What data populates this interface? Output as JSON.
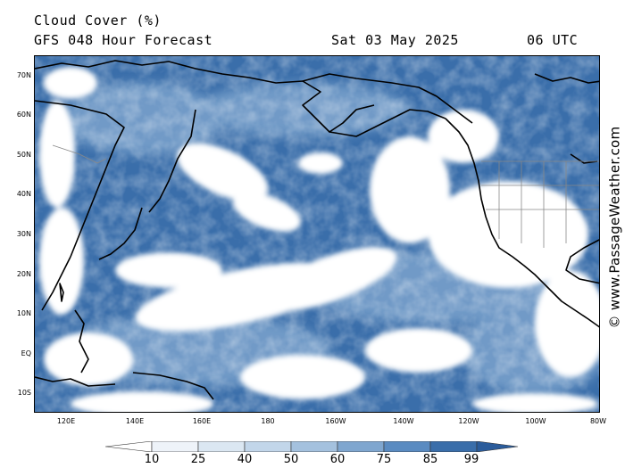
{
  "header": {
    "title": "Cloud Cover (%)",
    "subtitle": "GFS 048 Hour Forecast",
    "date": "Sat 03 May 2025",
    "time": "06 UTC"
  },
  "map": {
    "latitude_labels": [
      "70N",
      "60N",
      "50N",
      "40N",
      "30N",
      "20N",
      "10N",
      "EQ",
      "10S"
    ],
    "longitude_labels": [
      "120E",
      "140E",
      "160E",
      "180",
      "160W",
      "140W",
      "120W",
      "100W",
      "80W"
    ],
    "colors": {
      "dense_cloud": "#3a6eaa",
      "mid_cloud": "#8fb2d6",
      "thin_cloud": "#d9e6f2",
      "clear": "#ffffff",
      "coastline": "#000000"
    }
  },
  "watermark": "© www.PassageWeather.com",
  "legend": {
    "labels": [
      "10",
      "25",
      "40",
      "50",
      "60",
      "75",
      "85",
      "99"
    ],
    "colors": [
      "#ffffff",
      "#eef3f9",
      "#dbe7f2",
      "#c2d6ea",
      "#a4c1de",
      "#7fa6cf",
      "#5a8bc1",
      "#3a6eaa",
      "#2b5c9b"
    ]
  }
}
